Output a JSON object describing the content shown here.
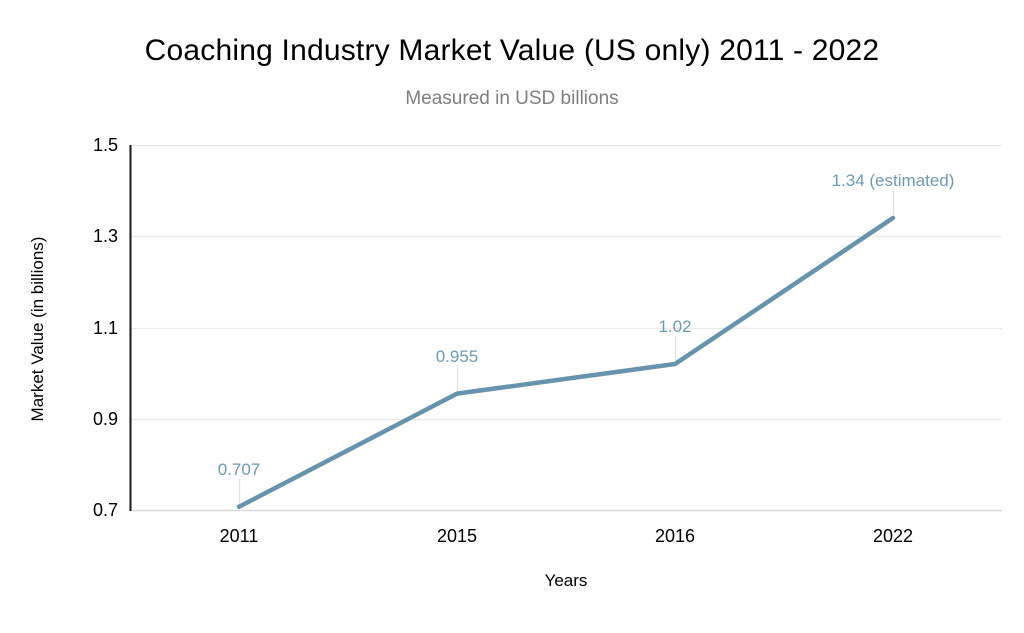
{
  "chart_data": {
    "type": "line",
    "title": "Coaching Industry Market Value (US only) 2011 - 2022",
    "subtitle": "Measured in USD billions",
    "xlabel": "Years",
    "ylabel": "Market Value (in billions)",
    "categories": [
      "2011",
      "2015",
      "2016",
      "2022"
    ],
    "values": [
      0.707,
      0.955,
      1.02,
      1.34
    ],
    "point_labels": [
      "0.707",
      "0.955",
      "1.02",
      "1.34 (estimated)"
    ],
    "ylim": [
      0.7,
      1.5
    ],
    "yticks": [
      0.7,
      0.9,
      1.1,
      1.3,
      1.5
    ],
    "ytick_labels": [
      "0.7",
      "0.9",
      "1.1",
      "1.3",
      "1.5"
    ],
    "grid": true,
    "legend": false,
    "colors": {
      "line": "#6893ad",
      "data_label": "#6f9ab4",
      "gridline": "#e9e9e9",
      "baseline": "#dadada",
      "axis_line": "#1b1b1b",
      "leader_line": "#e3e3e3",
      "title": "#000000",
      "subtitle": "#7f7f7f",
      "tick_label": "#000000"
    }
  }
}
